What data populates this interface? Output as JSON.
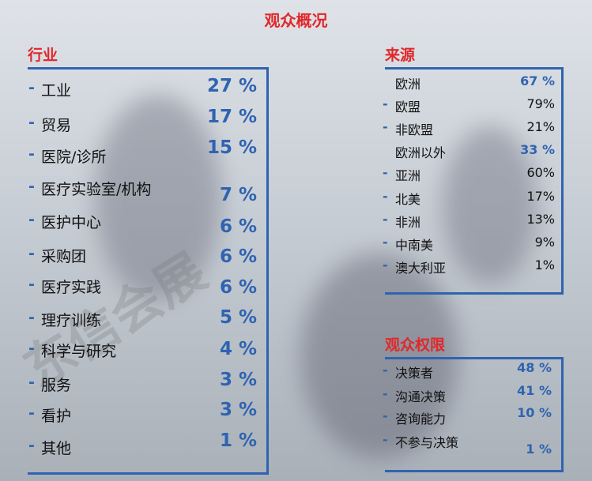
{
  "title": "观众概况",
  "watermark": "东信会展",
  "sections": [
    {
      "title": "行业",
      "items": [
        {
          "label": "工业",
          "value": "27 %"
        },
        {
          "label": "贸易",
          "value": "17 %"
        },
        {
          "label": "医院/诊所",
          "value": "15 %"
        },
        {
          "label": "医疗实验室/机构",
          "value": "7 %"
        },
        {
          "label": "医护中心",
          "value": "6 %"
        },
        {
          "label": "采购团",
          "value": "6 %"
        },
        {
          "label": "医疗实践",
          "value": "6 %"
        },
        {
          "label": "理疗训练",
          "value": "5 %"
        },
        {
          "label": "科学与研究",
          "value": "4 %"
        },
        {
          "label": "服务",
          "value": "3 %"
        },
        {
          "label": "看护",
          "value": "3 %"
        },
        {
          "label": "其他",
          "value": "1 %"
        }
      ]
    },
    {
      "title": "来源",
      "items": [
        {
          "label": "欧洲",
          "value": "67 %",
          "bullet": false,
          "color": "#2f63b0"
        },
        {
          "label": "欧盟",
          "value": "79%",
          "bullet": true,
          "color": "#111111"
        },
        {
          "label": "非欧盟",
          "value": "21%",
          "bullet": true,
          "color": "#111111"
        },
        {
          "label": "欧洲以外",
          "value": "33 %",
          "bullet": false,
          "color": "#2f63b0"
        },
        {
          "label": "亚洲",
          "value": "60%",
          "bullet": true,
          "color": "#111111"
        },
        {
          "label": "北美",
          "value": "17%",
          "bullet": true,
          "color": "#111111"
        },
        {
          "label": "非洲",
          "value": "13%",
          "bullet": true,
          "color": "#111111"
        },
        {
          "label": "中南美",
          "value": "9%",
          "bullet": true,
          "color": "#111111"
        },
        {
          "label": "澳大利亚",
          "value": "1%",
          "bullet": true,
          "color": "#111111"
        }
      ]
    },
    {
      "title": "观众权限",
      "items": [
        {
          "label": "决策者",
          "value": "48 %"
        },
        {
          "label": "沟通决策",
          "value": "41 %"
        },
        {
          "label": "咨询能力",
          "value": "10 %"
        },
        {
          "label": "不参与决策",
          "value": "1 %"
        }
      ]
    }
  ]
}
